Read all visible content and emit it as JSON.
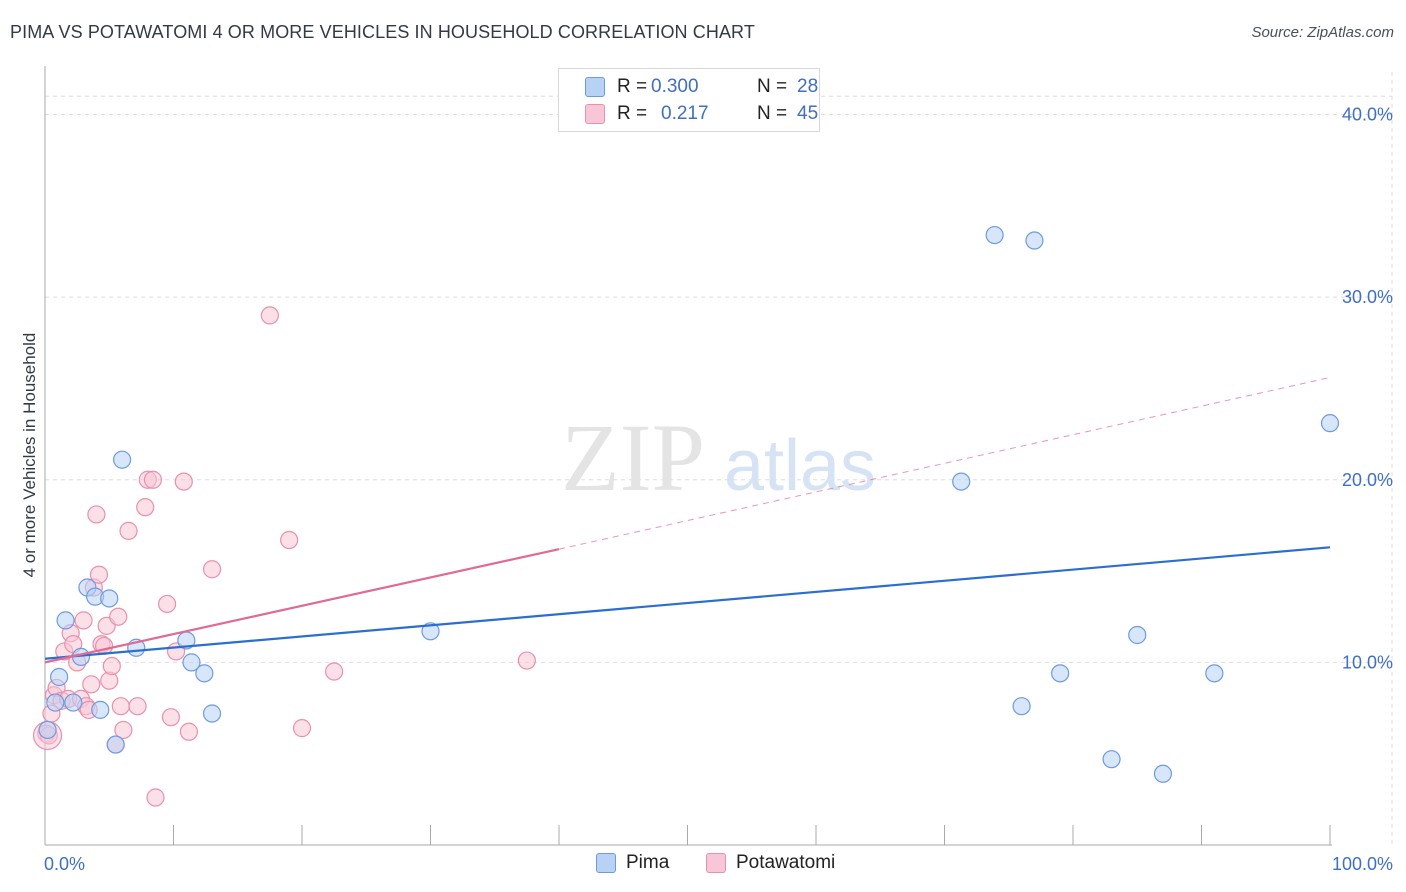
{
  "title": "PIMA VS POTAWATOMI 4 OR MORE VEHICLES IN HOUSEHOLD CORRELATION CHART",
  "source": "Source: ZipAtlas.com",
  "watermark": {
    "zip": "ZIP",
    "atlas": "atlas"
  },
  "colors": {
    "pima_fill": "#b8d2f5",
    "pima_stroke": "#6d9be0",
    "pima_line": "#2a6fd0",
    "pota_fill": "#f8c6d6",
    "pota_stroke": "#e990ad",
    "pota_line": "#e06a93",
    "tick_text": "#3f6fc4",
    "grid": "#dddddd"
  },
  "legend": {
    "pima": {
      "r_label": "R =",
      "r_value": "0.300",
      "n_label": "N =",
      "n_value": "28"
    },
    "potawatomi": {
      "r_label": "R =",
      "r_value": "0.217",
      "n_label": "N =",
      "n_value": "45"
    }
  },
  "bottom_legend": {
    "pima": "Pima",
    "potawatomi": "Potawatomi"
  },
  "chart_data": {
    "type": "scatter",
    "title": "PIMA VS POTAWATOMI 4 OR MORE VEHICLES IN HOUSEHOLD CORRELATION CHART",
    "xlabel": "",
    "ylabel": "4 or more Vehicles in Household",
    "xlim": [
      0,
      100
    ],
    "ylim": [
      0,
      42
    ],
    "y_ticks": [
      10,
      20,
      30,
      40
    ],
    "y_tick_labels": [
      "10.0%",
      "20.0%",
      "30.0%",
      "40.0%"
    ],
    "x_tick_labels": [
      "0.0%",
      "100.0%"
    ],
    "grid": true,
    "legend_position": "top-center",
    "series": [
      {
        "name": "Pima",
        "r": 0.3,
        "n": 28,
        "points": [
          {
            "x": 0.2,
            "y": 6.3
          },
          {
            "x": 0.8,
            "y": 7.8
          },
          {
            "x": 1.1,
            "y": 9.2
          },
          {
            "x": 1.6,
            "y": 12.3
          },
          {
            "x": 2.2,
            "y": 7.8
          },
          {
            "x": 2.8,
            "y": 10.3
          },
          {
            "x": 3.3,
            "y": 14.1
          },
          {
            "x": 3.9,
            "y": 13.6
          },
          {
            "x": 4.3,
            "y": 7.4
          },
          {
            "x": 5.0,
            "y": 13.5
          },
          {
            "x": 5.5,
            "y": 5.5
          },
          {
            "x": 6.0,
            "y": 21.1
          },
          {
            "x": 7.1,
            "y": 10.8
          },
          {
            "x": 11.0,
            "y": 11.2
          },
          {
            "x": 11.4,
            "y": 10.0
          },
          {
            "x": 12.4,
            "y": 9.4
          },
          {
            "x": 13.0,
            "y": 7.2
          },
          {
            "x": 30.0,
            "y": 11.7
          },
          {
            "x": 71.3,
            "y": 19.9
          },
          {
            "x": 73.9,
            "y": 33.4
          },
          {
            "x": 77.0,
            "y": 33.1
          },
          {
            "x": 76.0,
            "y": 7.6
          },
          {
            "x": 79.0,
            "y": 9.4
          },
          {
            "x": 83.0,
            "y": 4.7
          },
          {
            "x": 85.0,
            "y": 11.5
          },
          {
            "x": 87.0,
            "y": 3.9
          },
          {
            "x": 91.0,
            "y": 9.4
          },
          {
            "x": 100.0,
            "y": 23.1
          }
        ],
        "trend": {
          "x1": 0,
          "y1": 10.2,
          "x2": 100,
          "y2": 16.3,
          "style": "solid"
        }
      },
      {
        "name": "Potawatomi",
        "r": 0.217,
        "n": 45,
        "points": [
          {
            "x": 0.1,
            "y": 6.1
          },
          {
            "x": 0.5,
            "y": 7.2
          },
          {
            "x": 0.7,
            "y": 8.2
          },
          {
            "x": 0.9,
            "y": 8.6
          },
          {
            "x": 1.3,
            "y": 7.9
          },
          {
            "x": 1.5,
            "y": 10.6
          },
          {
            "x": 1.8,
            "y": 8.0
          },
          {
            "x": 2.0,
            "y": 11.6
          },
          {
            "x": 2.2,
            "y": 11.0
          },
          {
            "x": 2.5,
            "y": 10.0
          },
          {
            "x": 2.8,
            "y": 8.0
          },
          {
            "x": 3.0,
            "y": 12.3
          },
          {
            "x": 3.2,
            "y": 7.6
          },
          {
            "x": 3.4,
            "y": 7.4
          },
          {
            "x": 3.6,
            "y": 8.8
          },
          {
            "x": 3.8,
            "y": 14.1
          },
          {
            "x": 4.0,
            "y": 18.1
          },
          {
            "x": 4.2,
            "y": 14.8
          },
          {
            "x": 4.4,
            "y": 11.0
          },
          {
            "x": 4.6,
            "y": 10.9
          },
          {
            "x": 4.8,
            "y": 12.0
          },
          {
            "x": 5.0,
            "y": 9.0
          },
          {
            "x": 5.2,
            "y": 9.8
          },
          {
            "x": 5.5,
            "y": 5.5
          },
          {
            "x": 5.7,
            "y": 12.5
          },
          {
            "x": 5.9,
            "y": 7.6
          },
          {
            "x": 6.1,
            "y": 6.3
          },
          {
            "x": 6.5,
            "y": 17.2
          },
          {
            "x": 7.2,
            "y": 7.6
          },
          {
            "x": 7.8,
            "y": 18.5
          },
          {
            "x": 8.0,
            "y": 20.0
          },
          {
            "x": 8.4,
            "y": 20.0
          },
          {
            "x": 8.6,
            "y": 2.6
          },
          {
            "x": 9.5,
            "y": 13.2
          },
          {
            "x": 9.8,
            "y": 7.0
          },
          {
            "x": 10.2,
            "y": 10.6
          },
          {
            "x": 10.8,
            "y": 19.9
          },
          {
            "x": 11.2,
            "y": 6.2
          },
          {
            "x": 13.0,
            "y": 15.1
          },
          {
            "x": 17.5,
            "y": 29.0
          },
          {
            "x": 19.0,
            "y": 16.7
          },
          {
            "x": 20.0,
            "y": 6.4
          },
          {
            "x": 22.5,
            "y": 9.5
          },
          {
            "x": 37.5,
            "y": 10.1
          },
          {
            "x": 0.3,
            "y": 6.0
          }
        ],
        "trend": {
          "x1": 0,
          "y1": 10.0,
          "x2": 40,
          "y2": 16.2,
          "style": "solid",
          "extension": {
            "x1": 40,
            "y1": 16.2,
            "x2": 100,
            "y2": 25.6,
            "style": "dashed"
          }
        }
      }
    ]
  }
}
